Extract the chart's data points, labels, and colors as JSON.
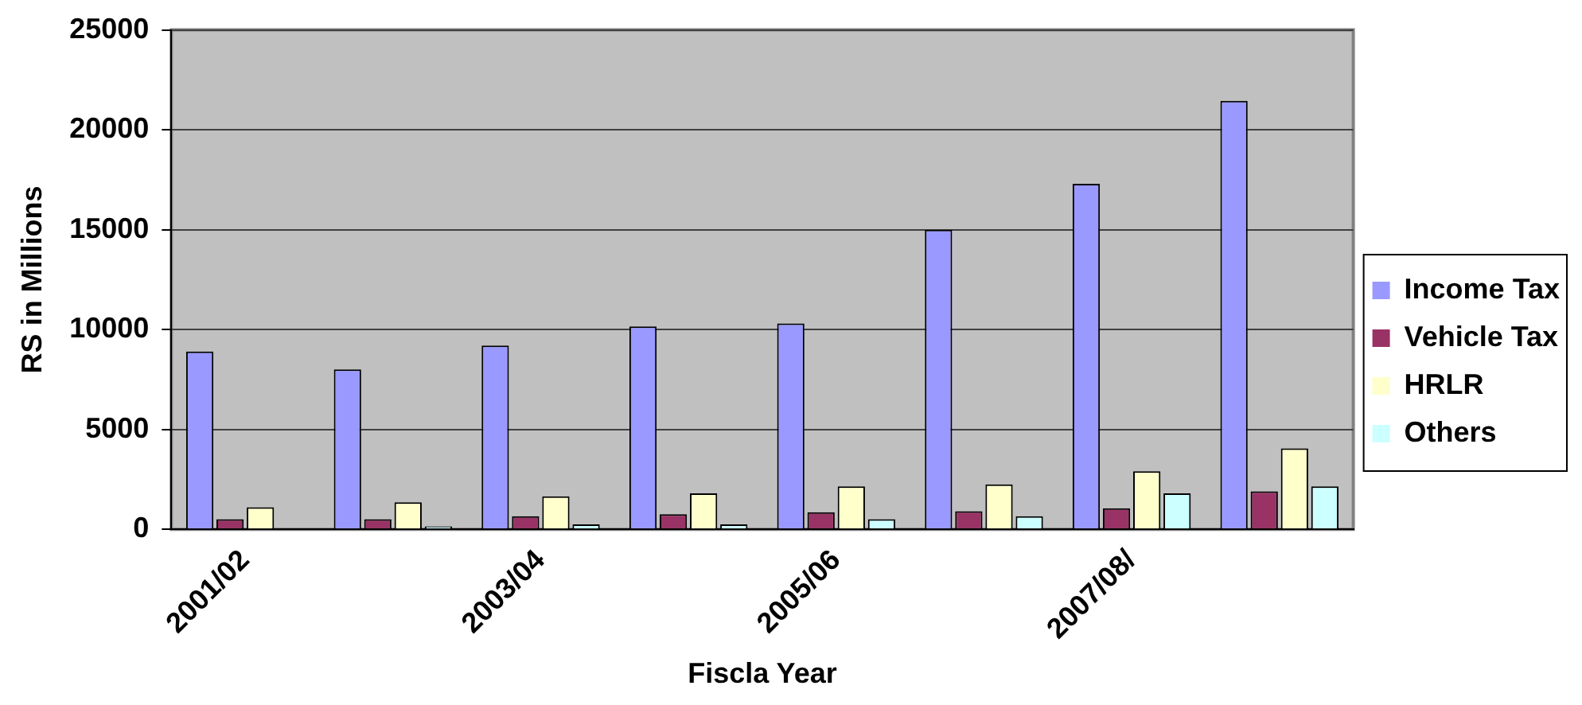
{
  "chart_data": {
    "type": "bar",
    "xlabel": "Fiscla Year",
    "ylabel": "RS in Millions",
    "categories": [
      "2001/02",
      null,
      "2003/04",
      null,
      "2005/06",
      null,
      "2007/08/",
      null
    ],
    "series": [
      {
        "name": "Income Tax",
        "color": "#9999ff",
        "values": [
          8900,
          8000,
          9200,
          10150,
          10300,
          15000,
          17300,
          21450
        ]
      },
      {
        "name": "Vehicle Tax",
        "color": "#993366",
        "values": [
          500,
          500,
          650,
          750,
          850,
          900,
          1050,
          1900
        ]
      },
      {
        "name": "HRLR",
        "color": "#ffffcc",
        "values": [
          1100,
          1350,
          1650,
          1800,
          2150,
          2250,
          2900,
          4050
        ]
      },
      {
        "name": "Others",
        "color": "#ccffff",
        "values": [
          0,
          150,
          250,
          250,
          500,
          650,
          1800,
          2150
        ]
      }
    ],
    "ylim": [
      0,
      25000
    ],
    "yticks": [
      0,
      5000,
      10000,
      15000,
      20000,
      25000
    ],
    "grid": "y",
    "legend": "right"
  }
}
